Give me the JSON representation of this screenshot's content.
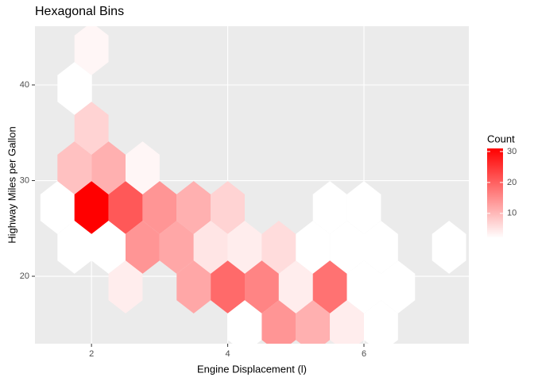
{
  "chart_data": {
    "type": "hexbin",
    "title": "Hexagonal Bins",
    "x_label": "Engine Displacement (l)",
    "y_label": "Highway Miles per Gallon",
    "x": [
      1.5,
      2.0,
      2.5,
      3.0,
      3.5,
      4.0,
      5.5,
      6.0,
      1.75,
      2.25,
      2.75,
      3.25,
      3.75,
      4.25,
      4.75,
      5.25,
      5.75,
      6.25,
      7.25,
      2.5,
      3.5,
      4.0,
      4.5,
      5.0,
      5.5,
      6.0,
      6.5,
      4.25,
      4.75,
      5.25,
      5.75,
      6.25,
      1.75,
      2.25,
      2.75,
      2.0,
      1.75,
      2.0
    ],
    "y": [
      27.18,
      27.18,
      27.18,
      27.18,
      27.18,
      27.18,
      27.18,
      27.18,
      23.03,
      23.03,
      23.03,
      23.03,
      23.03,
      23.03,
      23.03,
      23.03,
      23.03,
      23.03,
      23.03,
      18.88,
      18.88,
      18.88,
      18.88,
      18.88,
      18.88,
      18.88,
      18.88,
      14.73,
      14.73,
      14.73,
      14.73,
      14.73,
      31.33,
      31.33,
      31.33,
      35.48,
      39.63,
      43.78
    ],
    "values": [
      2,
      31,
      21,
      14,
      11,
      7,
      2,
      2,
      2,
      2,
      14,
      12,
      5,
      4,
      6,
      2,
      2,
      2,
      2,
      4,
      12,
      19,
      16,
      4,
      18,
      2,
      2,
      2,
      14,
      11,
      4,
      2,
      9,
      11,
      3,
      7,
      2,
      3
    ],
    "xlim": [
      1.17,
      7.54
    ],
    "ylim": [
      12.95,
      46.14
    ],
    "xticks": [
      2,
      4,
      6
    ],
    "yticks": [
      20,
      30,
      40
    ],
    "grid": true,
    "legend_title": "Count",
    "colorlim": [
      2,
      31
    ],
    "colorbar_ticks": [
      10,
      20,
      30
    ],
    "color_low": "#ffffff",
    "color_high": "#ff0000",
    "legend_position": "right"
  }
}
